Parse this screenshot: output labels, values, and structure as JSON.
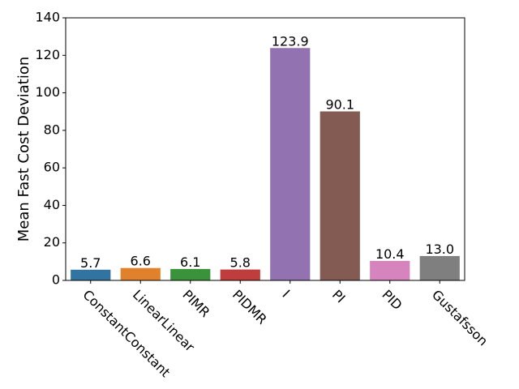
{
  "chart_data": {
    "type": "bar",
    "y_label": "Mean Fast Cost Deviation",
    "categories": [
      "ConstantConstant",
      "LinearLinear",
      "PIMR",
      "PIDMR",
      "I",
      "PI",
      "PID",
      "Gustafsson"
    ],
    "values": [
      5.7,
      6.6,
      6.1,
      5.8,
      123.9,
      90.1,
      10.4,
      13.0
    ],
    "value_labels": [
      "5.7",
      "6.6",
      "6.1",
      "5.8",
      "123.9",
      "90.1",
      "10.4",
      "13.0"
    ],
    "colors": [
      "#3274a1",
      "#e1812c",
      "#3a923a",
      "#c03d3e",
      "#9372b2",
      "#845b53",
      "#d684bd",
      "#7f7f7f"
    ],
    "ylim": [
      0,
      140
    ],
    "yticks": [
      0,
      20,
      40,
      60,
      80,
      100,
      120,
      140
    ]
  }
}
